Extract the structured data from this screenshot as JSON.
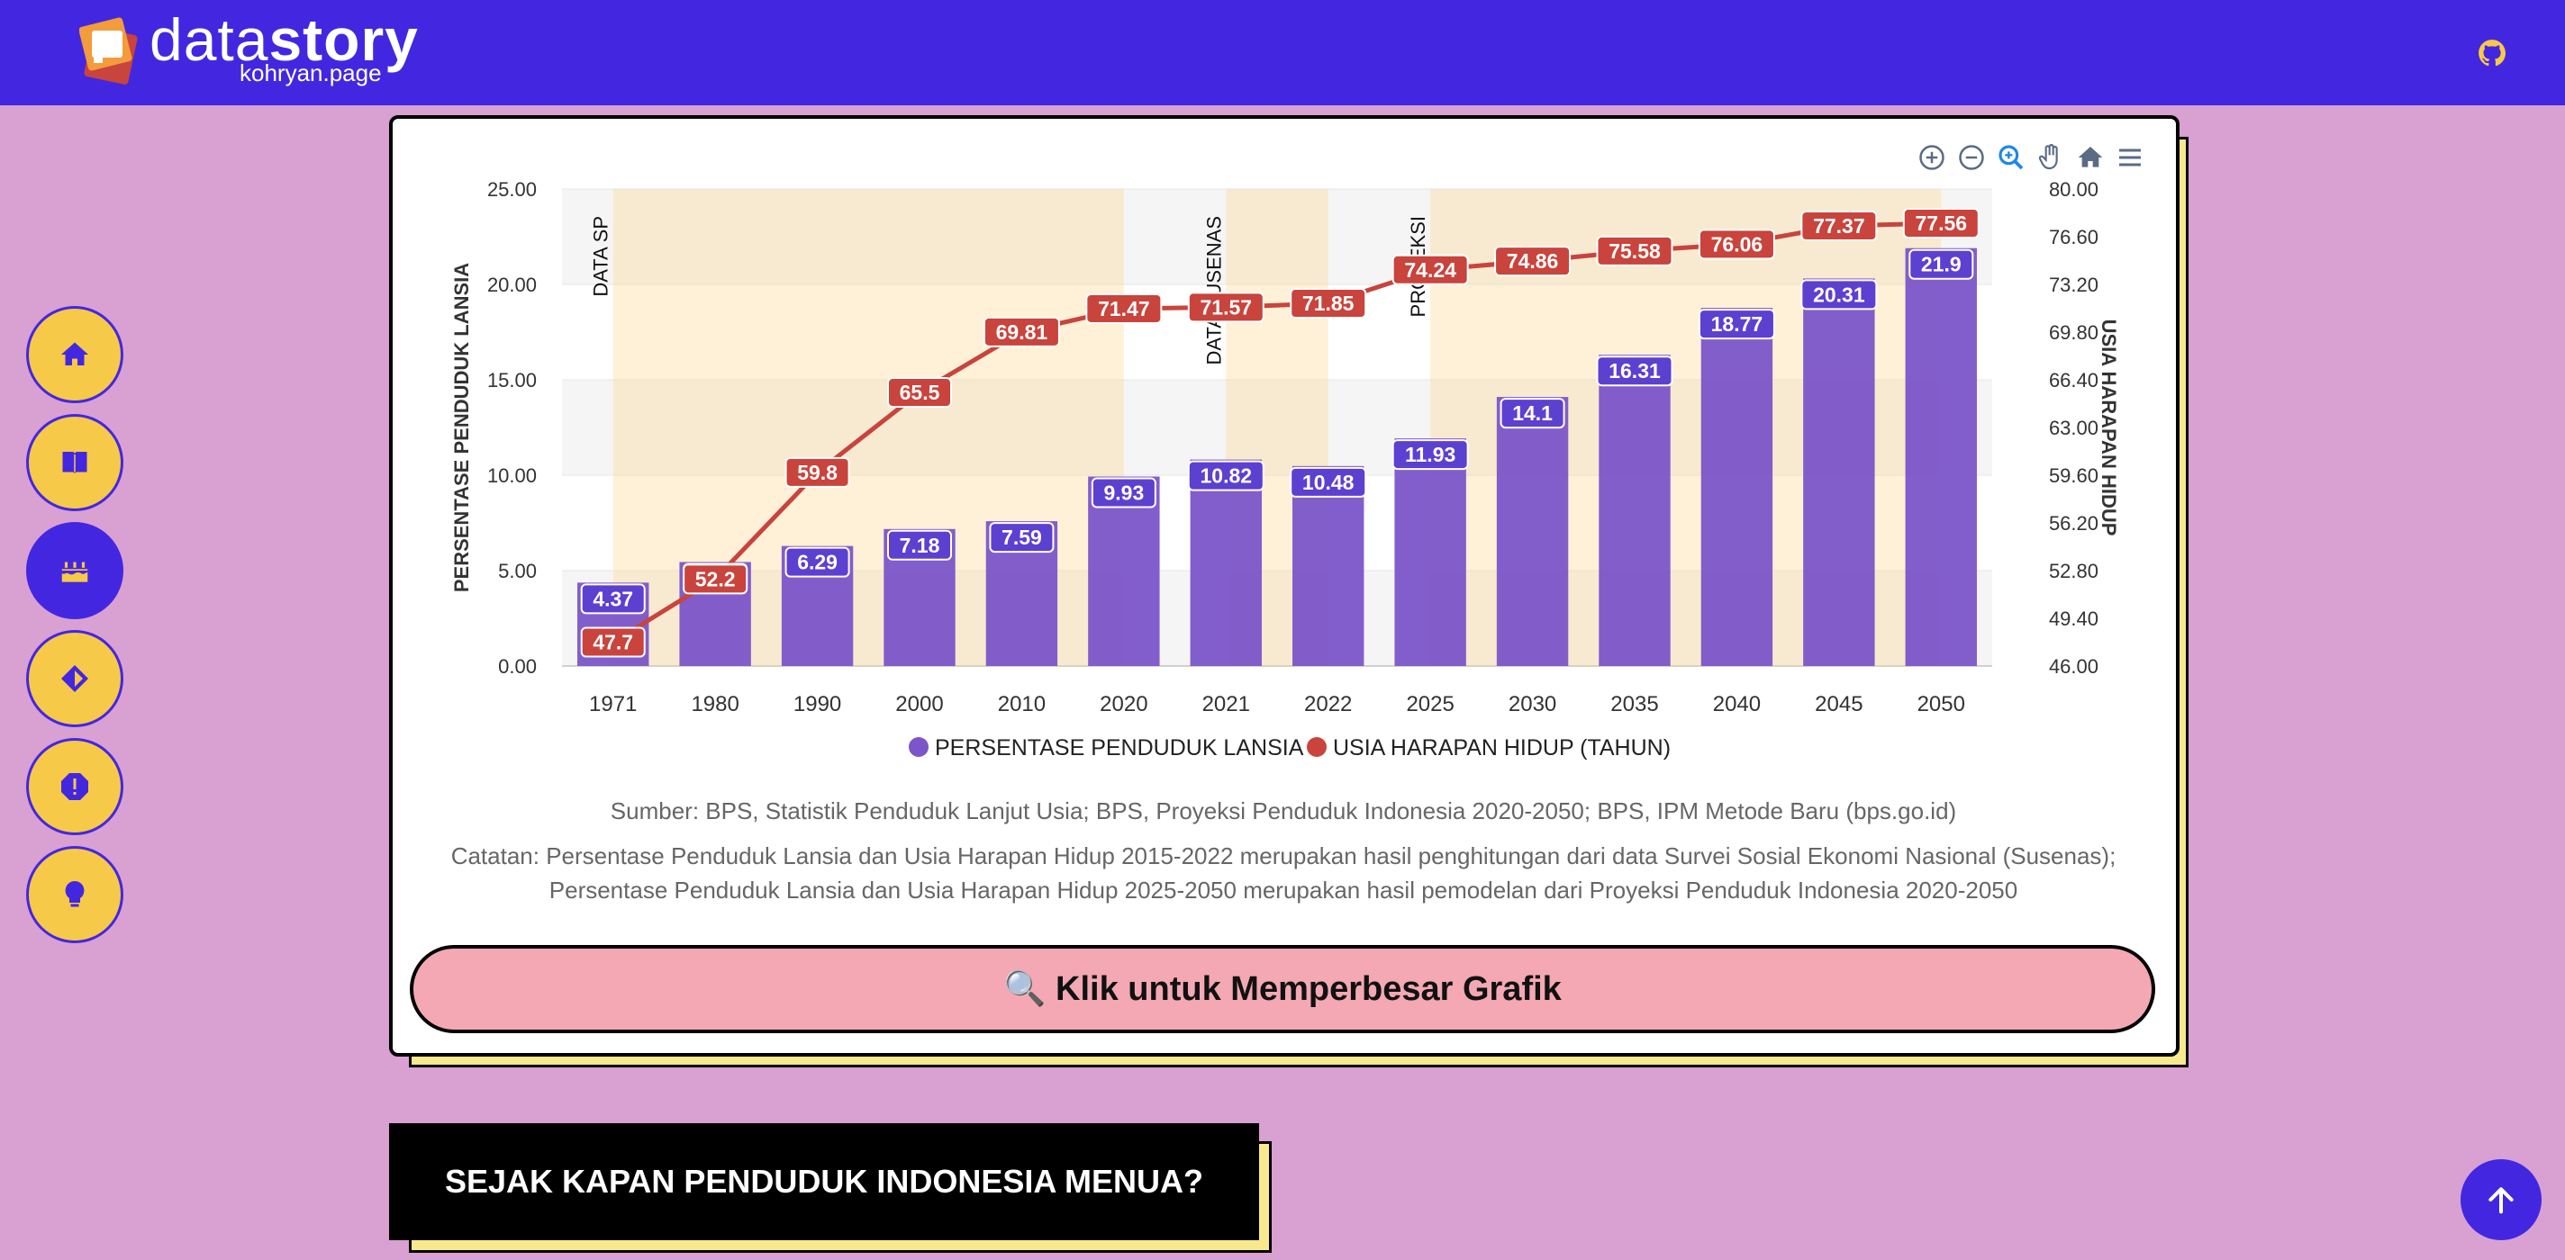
{
  "header": {
    "logo_text_light": "data",
    "logo_text_bold": "story",
    "logo_subtitle": "kohryan.page",
    "github_icon": "github-icon"
  },
  "sidenav": {
    "items": [
      {
        "icon": "home-icon"
      },
      {
        "icon": "book-icon"
      },
      {
        "icon": "cake-icon",
        "active": true
      },
      {
        "icon": "diamond-icon"
      },
      {
        "icon": "alert-octagon-icon"
      },
      {
        "icon": "lightbulb-icon"
      }
    ]
  },
  "colors": {
    "accent": "#4327e0",
    "yellow": "#f7c948",
    "bar": "#7b55c9",
    "line": "#c8443c",
    "pink": "#f3a8b4"
  },
  "chart_data": {
    "type": "bar",
    "categories": [
      "1971",
      "1980",
      "1990",
      "2000",
      "2010",
      "2020",
      "2021",
      "2022",
      "2025",
      "2030",
      "2035",
      "2040",
      "2045",
      "2050"
    ],
    "series": [
      {
        "name": "PERSENTASE PENDUDUK LANSIA",
        "type": "bar",
        "axis": "left",
        "color": "#7b55c9",
        "values": [
          4.37,
          5.45,
          6.29,
          7.18,
          7.59,
          9.93,
          10.82,
          10.48,
          11.93,
          14.1,
          16.31,
          18.77,
          20.31,
          21.9
        ]
      },
      {
        "name": "USIA HARAPAN HIDUP (TAHUN)",
        "type": "line",
        "axis": "right",
        "color": "#c8443c",
        "values": [
          47.7,
          52.2,
          59.8,
          65.5,
          69.81,
          71.47,
          71.57,
          71.85,
          74.24,
          74.86,
          75.58,
          76.06,
          77.37,
          77.56
        ]
      }
    ],
    "ylabel": "PERSENTASE PENDUDUK LANSIA",
    "y2label": "USIA HARAPAN HIDUP",
    "ylim": [
      0,
      25
    ],
    "y2lim": [
      46,
      80
    ],
    "yticks": [
      "0.00",
      "5.00",
      "10.00",
      "15.00",
      "20.00",
      "25.00"
    ],
    "y2ticks": [
      "46.00",
      "49.40",
      "52.80",
      "56.20",
      "59.60",
      "63.00",
      "66.40",
      "69.80",
      "73.20",
      "76.60",
      "80.00"
    ],
    "annotations": [
      {
        "label": "DATA SP",
        "from": "1971",
        "to": "2020"
      },
      {
        "label": "DATA SUSENAS",
        "from": "2021",
        "to": "2022"
      },
      {
        "label": "PROYEKSI",
        "from": "2025",
        "to": "2050"
      }
    ],
    "legend_position": "bottom"
  },
  "toolbar": {
    "icons": [
      "zoom-in-icon",
      "zoom-out-icon",
      "zoom-select-icon",
      "pan-hand-icon",
      "reset-home-icon",
      "menu-icon"
    ]
  },
  "source_text": "Sumber: BPS, Statistik Penduduk Lanjut Usia; BPS, Proyeksi Penduduk Indonesia 2020-2050; BPS, IPM Metode Baru (bps.go.id)",
  "note_line1": "Catatan: Persentase Penduduk Lansia dan Usia Harapan Hidup 2015-2022 merupakan hasil penghitungan dari data Survei Sosial Ekonomi Nasional (Susenas);",
  "note_line2": "Persentase Penduduk Lansia dan Usia Harapan Hidup 2025-2050 merupakan hasil pemodelan dari Proyeksi Penduduk Indonesia 2020-2050",
  "zoom_button_label": "🔍 Klik untuk Memperbesar Grafik",
  "section_title": "SEJAK KAPAN PENDUDUK INDONESIA MENUA?",
  "back_to_top_icon": "arrow-up-icon"
}
